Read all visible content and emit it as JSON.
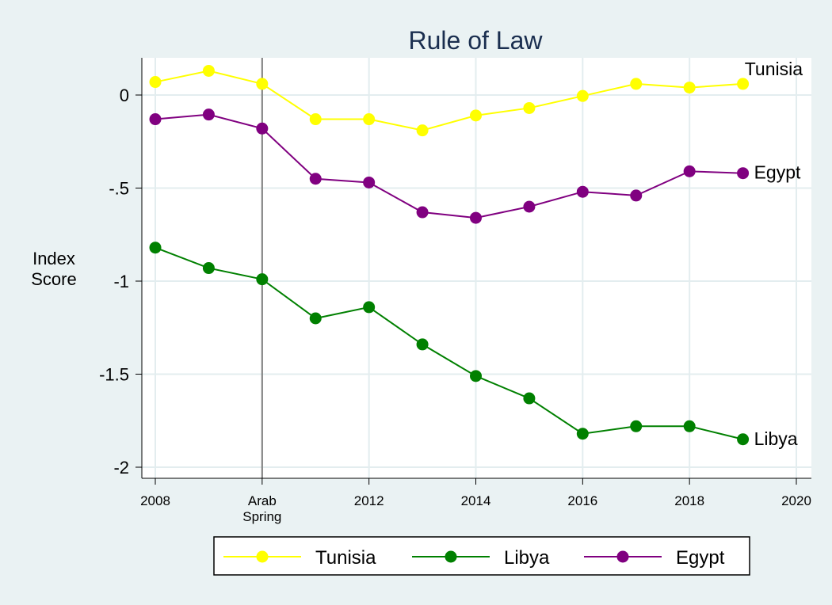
{
  "chart_data": {
    "type": "line",
    "title": "Rule of Law",
    "ylabel": [
      "Index",
      "Score"
    ],
    "xlim": [
      2008,
      2020
    ],
    "ylim": [
      -2.2,
      0.2
    ],
    "yticks": [
      {
        "value": 0,
        "label": "0"
      },
      {
        "value": -0.5,
        "label": "-.5"
      },
      {
        "value": -1,
        "label": "-1"
      },
      {
        "value": -1.5,
        "label": "-1.5"
      },
      {
        "value": -2,
        "label": "-2"
      }
    ],
    "xticks": [
      {
        "value": 2008,
        "label": [
          "2008"
        ]
      },
      {
        "value": 2010,
        "label": [
          "Arab",
          "Spring"
        ]
      },
      {
        "value": 2012,
        "label": [
          "2012"
        ]
      },
      {
        "value": 2014,
        "label": [
          "2014"
        ]
      },
      {
        "value": 2016,
        "label": [
          "2016"
        ]
      },
      {
        "value": 2018,
        "label": [
          "2018"
        ]
      },
      {
        "value": 2020,
        "label": [
          "2020"
        ]
      }
    ],
    "reference_line_x": 2010,
    "grid": true,
    "legend_position": "bottom",
    "x": [
      2008,
      2009,
      2010,
      2011,
      2012,
      2013,
      2014,
      2015,
      2016,
      2017,
      2018,
      2019
    ],
    "series": [
      {
        "name": "Tunisia",
        "color": "#ffff00",
        "values": [
          0.07,
          0.13,
          0.06,
          -0.13,
          -0.13,
          -0.19,
          -0.11,
          -0.07,
          -0.005,
          0.06,
          0.04,
          0.06
        ]
      },
      {
        "name": "Libya",
        "color": "#008000",
        "values": [
          -0.82,
          -0.93,
          -0.99,
          -1.2,
          -1.14,
          -1.34,
          -1.51,
          -1.63,
          -1.82,
          -1.78,
          -1.78,
          -1.85
        ]
      },
      {
        "name": "Egypt",
        "color": "#800080",
        "values": [
          -0.13,
          -0.105,
          -0.18,
          -0.45,
          -0.47,
          -0.63,
          -0.66,
          -0.6,
          -0.52,
          -0.54,
          -0.41,
          -0.42
        ]
      }
    ],
    "end_labels": [
      {
        "series": "Tunisia",
        "text": "Tunisia"
      },
      {
        "series": "Egypt",
        "text": "Egypt"
      },
      {
        "series": "Libya",
        "text": "Libya"
      }
    ]
  }
}
